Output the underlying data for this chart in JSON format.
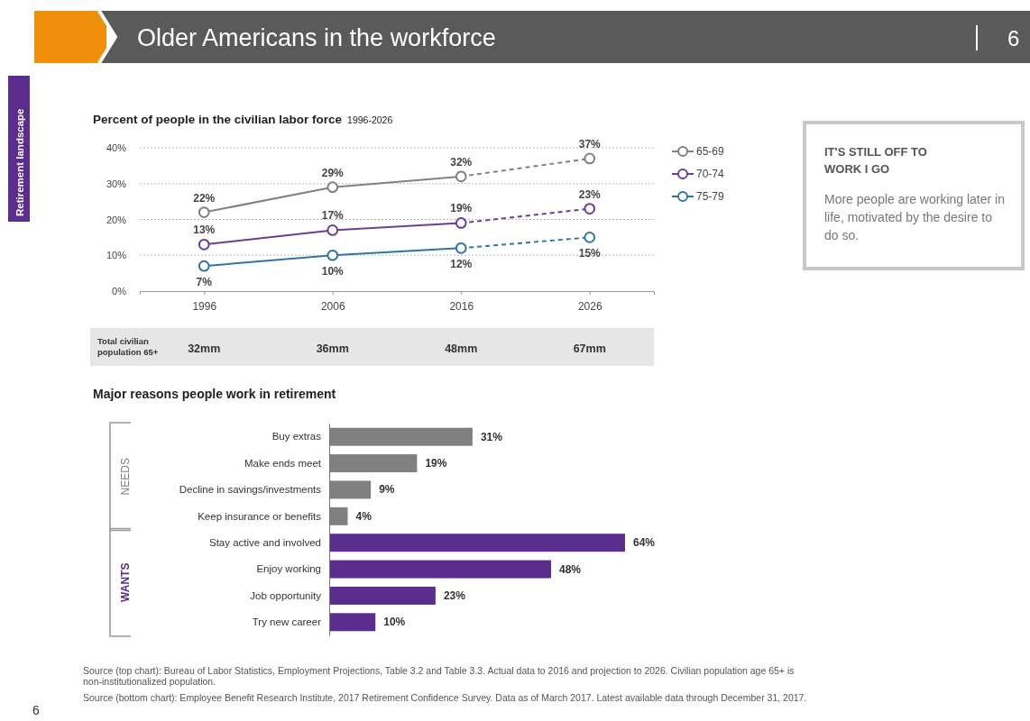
{
  "chart_data": [
    {
      "type": "line",
      "title": "Percent of people in the civilian labor force",
      "subtitle": "1996-2026",
      "categories": [
        "1996",
        "2006",
        "2016",
        "2026"
      ],
      "ylim": [
        0,
        40
      ],
      "yticks": [
        {
          "value": 0,
          "label": "0%"
        },
        {
          "value": 10,
          "label": "10%"
        },
        {
          "value": 20,
          "label": "20%"
        },
        {
          "value": 30,
          "label": "30%"
        },
        {
          "value": 40,
          "label": "40%"
        }
      ],
      "grid": "y",
      "legend": "right",
      "marker": "circle",
      "series": [
        {
          "name": "65-69",
          "color": "#808080",
          "line_style": "solid",
          "values": [
            22,
            29,
            32,
            null
          ],
          "value_labels": [
            "22%",
            "29%",
            "32%",
            null
          ]
        },
        {
          "name": "70-74",
          "color": "#6a3d9a",
          "line_style": "solid",
          "values": [
            13,
            17,
            19,
            null
          ],
          "value_labels": [
            "13%",
            "17%",
            "19%",
            null
          ]
        },
        {
          "name": "75-79",
          "color": "#2f74a8",
          "line_style": "solid",
          "values": [
            7,
            10,
            12,
            null
          ],
          "value_labels": [
            "7%",
            "10%",
            "12%",
            null
          ]
        },
        {
          "color": "#808080",
          "line_style": "dashed",
          "values": [
            null,
            null,
            32,
            37
          ],
          "value_labels": [
            null,
            null,
            null,
            "37%"
          ]
        },
        {
          "color": "#6a3d9a",
          "line_style": "dashed",
          "values": [
            null,
            null,
            19,
            23
          ],
          "value_labels": [
            null,
            null,
            null,
            "23%"
          ]
        },
        {
          "color": "#2f74a8",
          "line_style": "dashed",
          "values": [
            null,
            null,
            12,
            15
          ],
          "value_labels": [
            null,
            null,
            null,
            "15%"
          ]
        }
      ],
      "annotations": [
        "Older Americans in the workforce",
        "6",
        "Retirement landscape",
        "Total civilian population 65+",
        "32mm",
        "36mm",
        "48mm",
        "67mm",
        "Source (top chart): Bureau of Labor Statistics, Employment Projections, Table 3.2 and Table 3.3. Actual data to 2016 and projection to 2026. Civilian population age 65+ is non-institutionalized population.",
        "6"
      ]
    },
    {
      "type": "other",
      "title": "IT'S STILL OFF TO WORK I GO",
      "annotations": [
        "More people are working later in life, motivated by the desire to do so."
      ]
    },
    {
      "type": "bar",
      "orientation": "horizontal",
      "title": "Major reasons people work in retirement",
      "categories": [
        "Buy extras",
        "Make ends meet",
        "Decline in savings/investments",
        "Keep insurance or benefits",
        "Stay active and involved",
        "Enjoy working",
        "Job opportunity",
        "Try new career"
      ],
      "values": [
        31,
        19,
        9,
        4,
        64,
        48,
        23,
        10
      ],
      "colors": [
        "#808080",
        "#808080",
        "#808080",
        "#808080",
        "#5b2d8e",
        "#5b2d8e",
        "#5b2d8e",
        "#5b2d8e"
      ],
      "value_labels": [
        "31%",
        "19%",
        "9%",
        "4%",
        "64%",
        "48%",
        "23%",
        "10%"
      ],
      "annotations": [
        "NEEDS",
        "WANTS",
        "Source (bottom chart): Employee Benefit Research Institute, 2017 Retirement Confidence Survey. Data as of March 2017. Latest available data through December 31, 2017."
      ]
    }
  ]
}
